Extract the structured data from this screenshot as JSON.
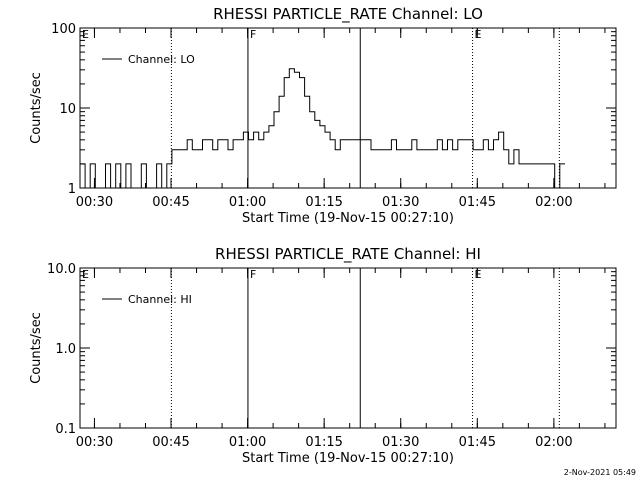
{
  "footer": {
    "timestamp": "2-Nov-2021 05:49"
  },
  "chart_data": [
    {
      "type": "line",
      "title": "RHESSI PARTICLE_RATE Channel: LO",
      "xlabel": "Start Time (19-Nov-15 00:27:10)",
      "ylabel": "Counts/sec",
      "yscale": "log",
      "ylim": [
        1,
        100
      ],
      "xlim_minutes_after_00_27_10": [
        0,
        105
      ],
      "x_ticks": [
        {
          "label": "00:30",
          "min": 2.83
        },
        {
          "label": "00:45",
          "min": 17.83
        },
        {
          "label": "01:00",
          "min": 32.83
        },
        {
          "label": "01:15",
          "min": 47.83
        },
        {
          "label": "01:30",
          "min": 62.83
        },
        {
          "label": "01:45",
          "min": 77.83
        },
        {
          "label": "02:00",
          "min": 92.83
        }
      ],
      "y_ticks": [
        {
          "label": "1",
          "value": 1
        },
        {
          "label": "10",
          "value": 10
        },
        {
          "label": "100",
          "value": 100
        }
      ],
      "legend": {
        "text": "Channel: LO",
        "position": "top-left"
      },
      "markers": [
        {
          "min": 17.9,
          "style": "dotted",
          "letter": ""
        },
        {
          "min": 32.9,
          "style": "solid",
          "letter": "F"
        },
        {
          "min": 54.9,
          "style": "solid",
          "letter": ""
        },
        {
          "min": 76.9,
          "style": "dotted",
          "letter": "E"
        },
        {
          "min": 93.9,
          "style": "dotted",
          "letter": ""
        }
      ],
      "corner_letter": "E",
      "series": [
        {
          "x": [
            0,
            1,
            2,
            3,
            4,
            5,
            6,
            7,
            8,
            9,
            10,
            11,
            12,
            13,
            14,
            15,
            16,
            17,
            18,
            19,
            20,
            21,
            22,
            23,
            24,
            25,
            26,
            27,
            28,
            29,
            30,
            31,
            32,
            33,
            34,
            35,
            36,
            37,
            38,
            39,
            40,
            41,
            42,
            43,
            44,
            45,
            46,
            47,
            48,
            49,
            50,
            51,
            52,
            53,
            54,
            55,
            56,
            57,
            58,
            59,
            60,
            61,
            62,
            63,
            64,
            65,
            66,
            67,
            68,
            69,
            70,
            71,
            72,
            73,
            74,
            75,
            76,
            77,
            78,
            79,
            80,
            81,
            82,
            83,
            84,
            85,
            86,
            87,
            88,
            89,
            90,
            91,
            92,
            93,
            94,
            95
          ],
          "values": [
            2,
            1,
            2,
            1,
            1,
            2,
            1,
            2,
            1,
            2,
            1,
            1,
            2,
            1,
            1,
            2,
            1,
            2,
            3,
            3,
            3,
            4,
            3,
            3,
            4,
            4,
            3,
            4,
            4,
            3,
            4,
            4,
            5,
            4,
            5,
            4,
            5,
            6,
            9,
            14,
            24,
            31,
            28,
            24,
            14,
            9,
            7,
            6,
            5,
            4,
            3,
            4,
            4,
            4,
            4,
            4,
            4,
            3,
            3,
            3,
            3,
            4,
            3,
            3,
            3,
            4,
            3,
            3,
            3,
            3,
            4,
            3,
            4,
            3,
            4,
            4,
            4,
            3,
            3,
            4,
            3,
            4,
            5,
            3,
            2,
            3,
            2,
            2,
            2,
            2,
            2,
            2,
            2,
            1,
            2,
            2
          ]
        }
      ]
    },
    {
      "type": "line",
      "title": "RHESSI PARTICLE_RATE Channel: HI",
      "xlabel": "Start Time (19-Nov-15 00:27:10)",
      "ylabel": "Counts/sec",
      "yscale": "log",
      "ylim": [
        0.1,
        10
      ],
      "xlim_minutes_after_00_27_10": [
        0,
        105
      ],
      "x_ticks": [
        {
          "label": "00:30",
          "min": 2.83
        },
        {
          "label": "00:45",
          "min": 17.83
        },
        {
          "label": "01:00",
          "min": 32.83
        },
        {
          "label": "01:15",
          "min": 47.83
        },
        {
          "label": "01:30",
          "min": 62.83
        },
        {
          "label": "01:45",
          "min": 77.83
        },
        {
          "label": "02:00",
          "min": 92.83
        }
      ],
      "y_ticks": [
        {
          "label": "0.1",
          "value": 0.1
        },
        {
          "label": "1.0",
          "value": 1
        },
        {
          "label": "10.0",
          "value": 10
        }
      ],
      "legend": {
        "text": "Channel: HI",
        "position": "top-left"
      },
      "markers": [
        {
          "min": 17.9,
          "style": "dotted",
          "letter": ""
        },
        {
          "min": 32.9,
          "style": "solid",
          "letter": "F"
        },
        {
          "min": 54.9,
          "style": "solid",
          "letter": ""
        },
        {
          "min": 76.9,
          "style": "dotted",
          "letter": "E"
        },
        {
          "min": 93.9,
          "style": "dotted",
          "letter": ""
        }
      ],
      "corner_letter": "E",
      "series": []
    }
  ]
}
